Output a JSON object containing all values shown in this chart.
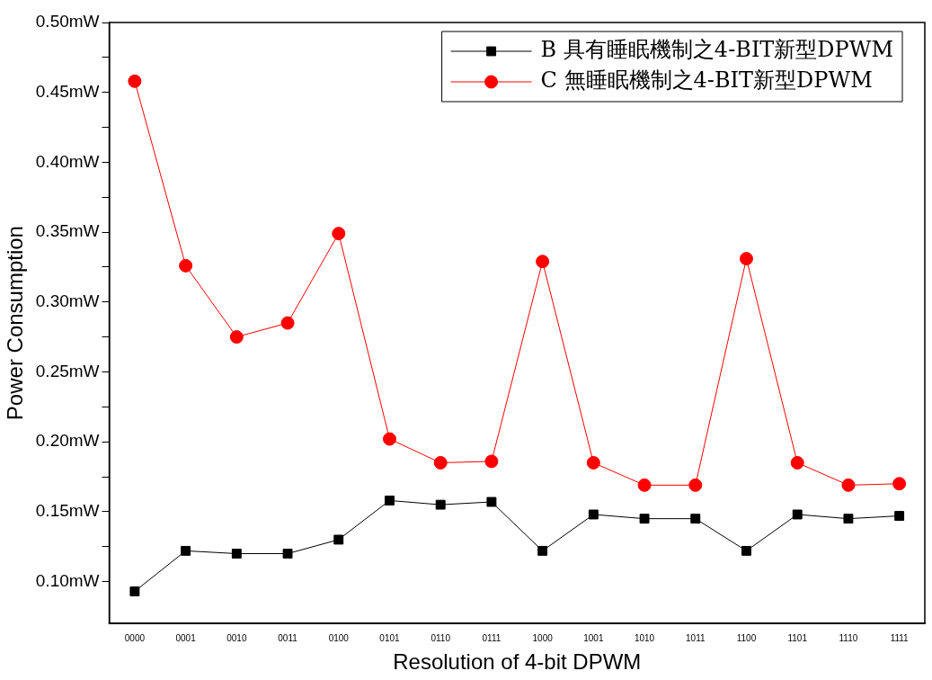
{
  "chart_data": {
    "type": "line",
    "xlabel": "Resolution of 4-bit DPWM",
    "ylabel": "Power Consumption",
    "categories": [
      "0000",
      "0001",
      "0010",
      "0011",
      "0100",
      "0101",
      "0110",
      "0111",
      "1000",
      "1001",
      "1010",
      "1011",
      "1100",
      "1101",
      "1110",
      "1111"
    ],
    "series": [
      {
        "name": "B 具有睡眠機制之4-BIT新型DPWM",
        "color": "#000000",
        "marker": "square",
        "values": [
          0.093,
          0.122,
          0.12,
          0.12,
          0.13,
          0.158,
          0.155,
          0.157,
          0.122,
          0.148,
          0.145,
          0.145,
          0.122,
          0.148,
          0.145,
          0.147
        ]
      },
      {
        "name": "C 無睡眠機制之4-BIT新型DPWM",
        "color": "#ff0000",
        "marker": "circle",
        "values": [
          0.458,
          0.326,
          0.275,
          0.285,
          0.349,
          0.202,
          0.185,
          0.186,
          0.329,
          0.185,
          0.169,
          0.169,
          0.331,
          0.185,
          0.169,
          0.17
        ]
      }
    ],
    "ylim": [
      0.07,
      0.5
    ],
    "yticks": [
      {
        "value": 0.1,
        "label": "0.10mW"
      },
      {
        "value": 0.125,
        "label": null
      },
      {
        "value": 0.15,
        "label": "0.15mW"
      },
      {
        "value": 0.175,
        "label": null
      },
      {
        "value": 0.2,
        "label": "0.20mW"
      },
      {
        "value": 0.225,
        "label": null
      },
      {
        "value": 0.25,
        "label": "0.25mW"
      },
      {
        "value": 0.275,
        "label": null
      },
      {
        "value": 0.3,
        "label": "0.30mW"
      },
      {
        "value": 0.325,
        "label": null
      },
      {
        "value": 0.35,
        "label": "0.35mW"
      },
      {
        "value": 0.375,
        "label": null
      },
      {
        "value": 0.4,
        "label": "0.40mW"
      },
      {
        "value": 0.425,
        "label": null
      },
      {
        "value": 0.45,
        "label": "0.45mW"
      },
      {
        "value": 0.475,
        "label": null
      },
      {
        "value": 0.5,
        "label": "0.50mW"
      }
    ],
    "grid": false,
    "legend": "top right",
    "line_style": "solid"
  }
}
